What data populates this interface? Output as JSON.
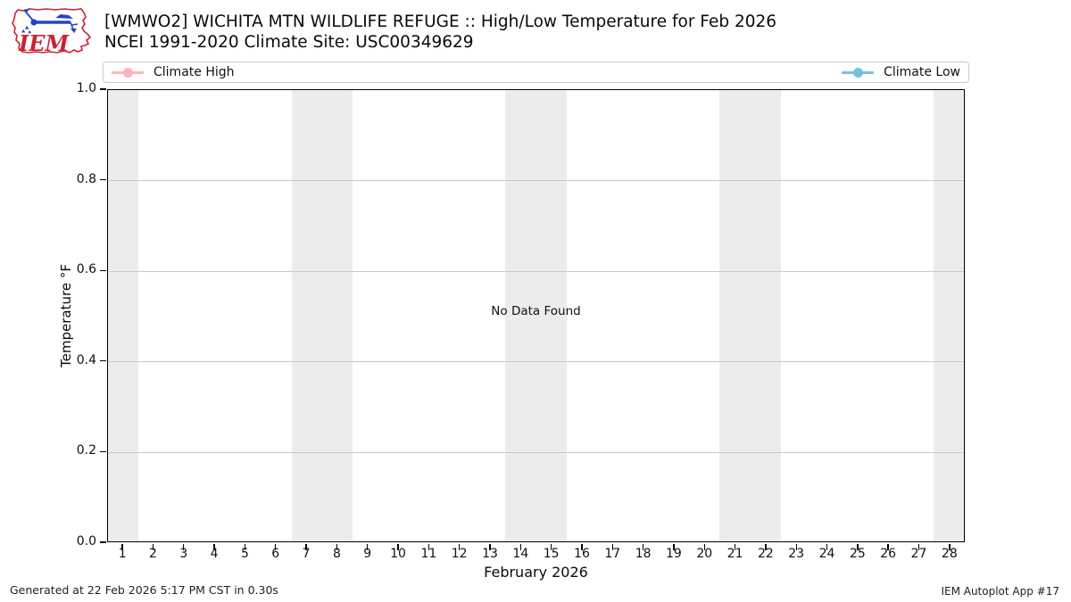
{
  "header": {
    "title": "[WMWO2] WICHITA MTN WILDLIFE REFUGE :: High/Low Temperature for Feb 2026",
    "subtitle": "NCEI 1991-2020 Climate Site: USC00349629",
    "logo_text": "IEM",
    "logo_colors": {
      "outline_red": "#cc2233",
      "vane_blue": "#2543c9"
    }
  },
  "chart_data": {
    "type": "line",
    "title": "[WMWO2] WICHITA MTN WILDLIFE REFUGE :: High/Low Temperature for Feb 2026",
    "subtitle": "NCEI 1991-2020 Climate Site: USC00349629",
    "xlabel": "February 2026",
    "ylabel": "Temperature °F",
    "no_data_text": "No Data Found",
    "x_ticks": [
      1,
      2,
      3,
      4,
      5,
      6,
      7,
      8,
      9,
      10,
      11,
      12,
      13,
      14,
      15,
      16,
      17,
      18,
      19,
      20,
      21,
      22,
      23,
      24,
      25,
      26,
      27,
      28
    ],
    "y_ticks": [
      "0.0",
      "0.2",
      "0.4",
      "0.6",
      "0.8",
      "1.0"
    ],
    "xlim": [
      0.5,
      28.5
    ],
    "ylim": [
      0.0,
      1.0
    ],
    "grid": "horizontal gridlines on",
    "legend_position": "top, full-width box, high left / low right",
    "weekend_shading_day_ranges": [
      [
        0.5,
        1.5
      ],
      [
        6.5,
        8.5
      ],
      [
        13.5,
        15.5
      ],
      [
        20.5,
        22.5
      ],
      [
        27.5,
        28.5
      ]
    ],
    "weekend_shading_color": "#ececec",
    "series": [
      {
        "name": "Climate High",
        "color": "#ffb3c0",
        "marker": "circle",
        "values": []
      },
      {
        "name": "Climate Low",
        "color": "#74c0e0",
        "marker": "circle",
        "values": []
      }
    ]
  },
  "footer": {
    "generated": "Generated at 22 Feb 2026 5:17 PM CST in 0.30s",
    "app": "IEM Autoplot App #17"
  }
}
